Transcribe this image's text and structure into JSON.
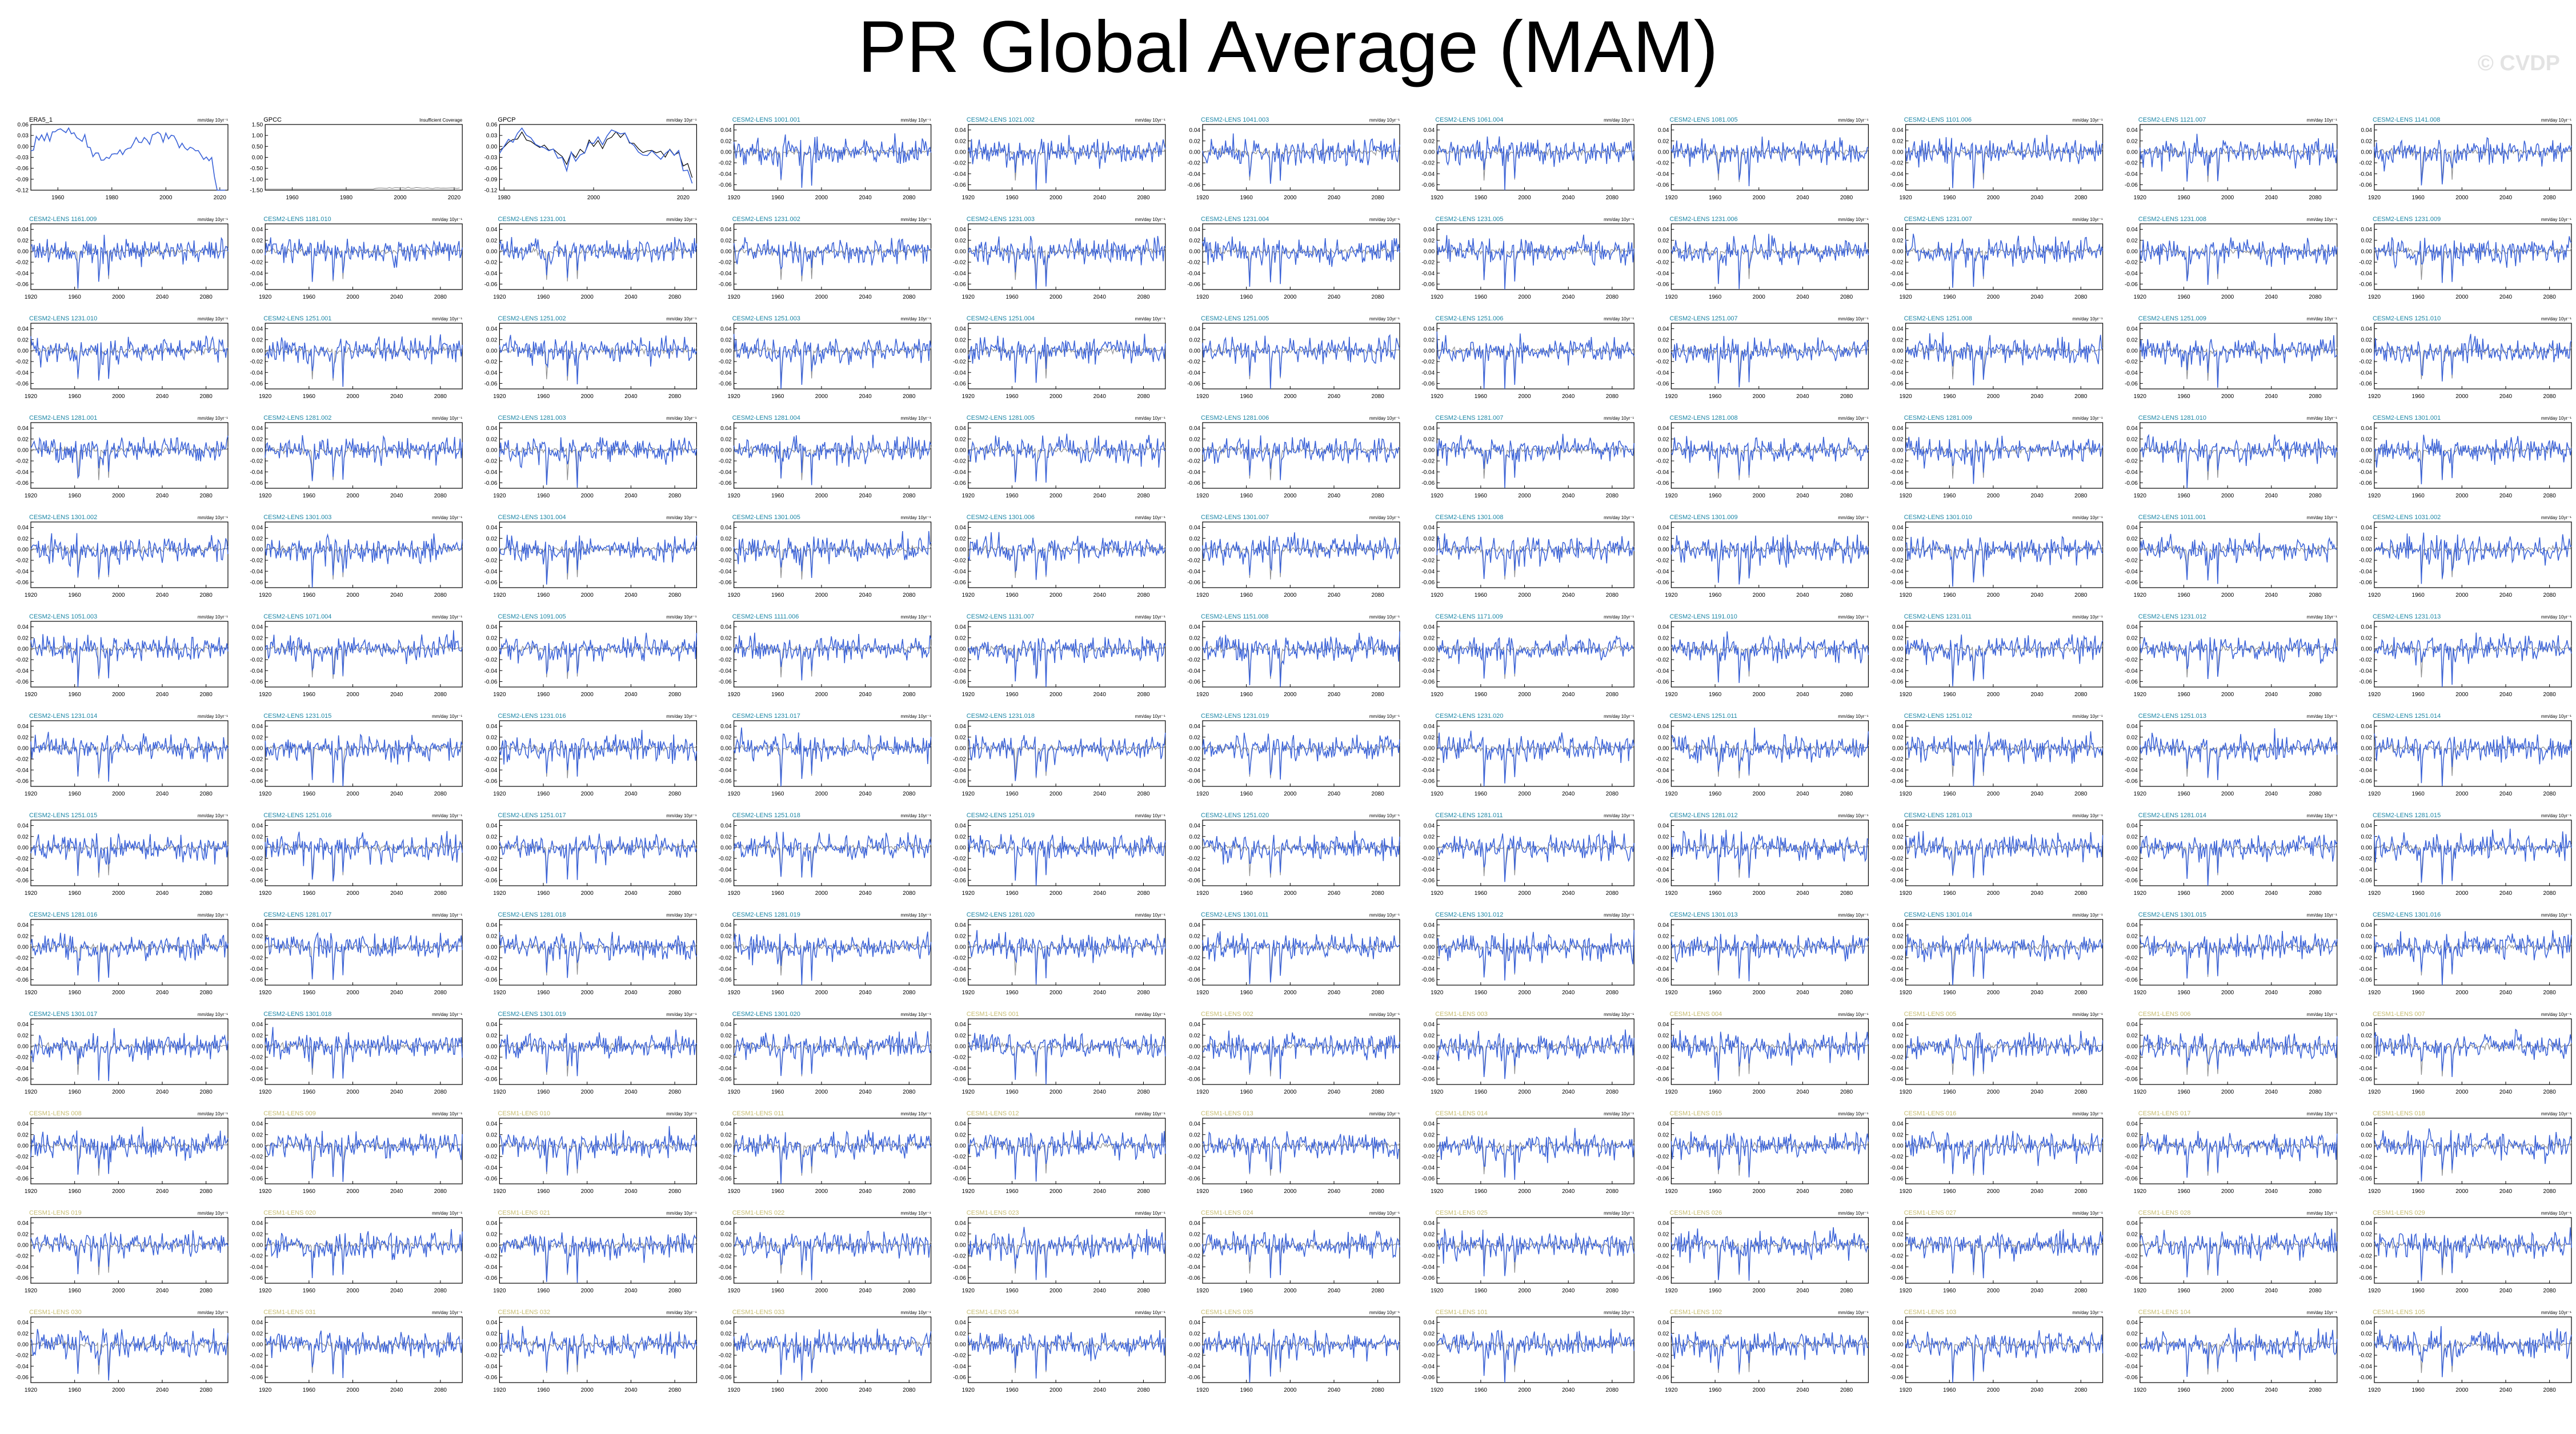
{
  "title": "PR Global Average (MAM)",
  "watermark": "© CVDP",
  "colors": {
    "observed": "#000000",
    "model_line": "#3a62d8",
    "ensemble_mean": "#8f8f8f",
    "label_cesm2": "#1b86a6",
    "label_cesm1": "#c7bd72",
    "axis": "#000000"
  },
  "chart_data": {
    "type": "line",
    "layout": "small-multiples 11 columns x 13 rows",
    "units_label": "mm/day 10^-2",
    "observations": [
      {
        "name": "ERA5_1",
        "units": "mm/day 10yr⁻¹",
        "x_ticks": [
          1960,
          1980,
          2000,
          2020
        ],
        "y_ticks": [
          0.06,
          0.03,
          0.0,
          -0.03,
          -0.06,
          -0.09,
          -0.12
        ],
        "ylim": [
          -0.12,
          0.06
        ]
      },
      {
        "name": "GPCC",
        "note": "Insufficient Coverage",
        "x_ticks": [
          1960,
          1980,
          2000,
          2020
        ],
        "y_ticks": [
          1.5,
          1.0,
          0.5,
          0.0,
          -0.5,
          -1.0,
          -1.5
        ],
        "ylim": [
          -1.5,
          1.5
        ]
      },
      {
        "name": "GPCP",
        "units": "mm/day 10yr⁻¹",
        "x_ticks": [
          1980,
          2000,
          2020
        ],
        "y_ticks": [
          0.06,
          0.03,
          0.0,
          -0.03,
          -0.06,
          -0.09,
          -0.12
        ],
        "ylim": [
          -0.12,
          0.06
        ]
      }
    ],
    "model_x_ticks": [
      1920,
      1960,
      2000,
      2040,
      2080
    ],
    "model_y_ticks": [
      0.04,
      0.02,
      0.0,
      -0.02,
      -0.04,
      -0.06
    ],
    "model_ylim": [
      -0.07,
      0.05
    ],
    "model_xlim": [
      1920,
      2100
    ],
    "model_units": "mm/day 10yr⁻¹",
    "model_panels": [
      "CESM2-LENS 1001.001",
      "CESM2-LENS 1021.002",
      "CESM2-LENS 1041.003",
      "CESM2-LENS 1061.004",
      "CESM2-LENS 1081.005",
      "CESM2-LENS 1101.006",
      "CESM2-LENS 1121.007",
      "CESM2-LENS 1141.008",
      "CESM2-LENS 1161.009",
      "CESM2-LENS 1181.010",
      "CESM2-LENS 1231.001",
      "CESM2-LENS 1231.002",
      "CESM2-LENS 1231.003",
      "CESM2-LENS 1231.004",
      "CESM2-LENS 1231.005",
      "CESM2-LENS 1231.006",
      "CESM2-LENS 1231.007",
      "CESM2-LENS 1231.008",
      "CESM2-LENS 1231.009",
      "CESM2-LENS 1231.010",
      "CESM2-LENS 1251.001",
      "CESM2-LENS 1251.002",
      "CESM2-LENS 1251.003",
      "CESM2-LENS 1251.004",
      "CESM2-LENS 1251.005",
      "CESM2-LENS 1251.006",
      "CESM2-LENS 1251.007",
      "CESM2-LENS 1251.008",
      "CESM2-LENS 1251.009",
      "CESM2-LENS 1251.010",
      "CESM2-LENS 1281.001",
      "CESM2-LENS 1281.002",
      "CESM2-LENS 1281.003",
      "CESM2-LENS 1281.004",
      "CESM2-LENS 1281.005",
      "CESM2-LENS 1281.006",
      "CESM2-LENS 1281.007",
      "CESM2-LENS 1281.008",
      "CESM2-LENS 1281.009",
      "CESM2-LENS 1281.010",
      "CESM2-LENS 1301.001",
      "CESM2-LENS 1301.002",
      "CESM2-LENS 1301.003",
      "CESM2-LENS 1301.004",
      "CESM2-LENS 1301.005",
      "CESM2-LENS 1301.006",
      "CESM2-LENS 1301.007",
      "CESM2-LENS 1301.008",
      "CESM2-LENS 1301.009",
      "CESM2-LENS 1301.010",
      "CESM2-LENS 1011.001",
      "CESM2-LENS 1031.002",
      "CESM2-LENS 1051.003",
      "CESM2-LENS 1071.004",
      "CESM2-LENS 1091.005",
      "CESM2-LENS 1111.006",
      "CESM2-LENS 1131.007",
      "CESM2-LENS 1151.008",
      "CESM2-LENS 1171.009",
      "CESM2-LENS 1191.010",
      "CESM2-LENS 1231.011",
      "CESM2-LENS 1231.012",
      "CESM2-LENS 1231.013",
      "CESM2-LENS 1231.014",
      "CESM2-LENS 1231.015",
      "CESM2-LENS 1231.016",
      "CESM2-LENS 1231.017",
      "CESM2-LENS 1231.018",
      "CESM2-LENS 1231.019",
      "CESM2-LENS 1231.020",
      "CESM2-LENS 1251.011",
      "CESM2-LENS 1251.012",
      "CESM2-LENS 1251.013",
      "CESM2-LENS 1251.014",
      "CESM2-LENS 1251.015",
      "CESM2-LENS 1251.016",
      "CESM2-LENS 1251.017",
      "CESM2-LENS 1251.018",
      "CESM2-LENS 1251.019",
      "CESM2-LENS 1251.020",
      "CESM2-LENS 1281.011",
      "CESM2-LENS 1281.012",
      "CESM2-LENS 1281.013",
      "CESM2-LENS 1281.014",
      "CESM2-LENS 1281.015",
      "CESM2-LENS 1281.016",
      "CESM2-LENS 1281.017",
      "CESM2-LENS 1281.018",
      "CESM2-LENS 1281.019",
      "CESM2-LENS 1281.020",
      "CESM2-LENS 1301.011",
      "CESM2-LENS 1301.012",
      "CESM2-LENS 1301.013",
      "CESM2-LENS 1301.014",
      "CESM2-LENS 1301.015",
      "CESM2-LENS 1301.016",
      "CESM2-LENS 1301.017",
      "CESM2-LENS 1301.018",
      "CESM2-LENS 1301.019",
      "CESM2-LENS 1301.020",
      "CESM1-LENS 001",
      "CESM1-LENS 002",
      "CESM1-LENS 003",
      "CESM1-LENS 004",
      "CESM1-LENS 005",
      "CESM1-LENS 006",
      "CESM1-LENS 007",
      "CESM1-LENS 008",
      "CESM1-LENS 009",
      "CESM1-LENS 010",
      "CESM1-LENS 011",
      "CESM1-LENS 012",
      "CESM1-LENS 013",
      "CESM1-LENS 014",
      "CESM1-LENS 015",
      "CESM1-LENS 016",
      "CESM1-LENS 017",
      "CESM1-LENS 018",
      "CESM1-LENS 019",
      "CESM1-LENS 020",
      "CESM1-LENS 021",
      "CESM1-LENS 022",
      "CESM1-LENS 023",
      "CESM1-LENS 024",
      "CESM1-LENS 025",
      "CESM1-LENS 026",
      "CESM1-LENS 027",
      "CESM1-LENS 028",
      "CESM1-LENS 029",
      "CESM1-LENS 030",
      "CESM1-LENS 031",
      "CESM1-LENS 032",
      "CESM1-LENS 033",
      "CESM1-LENS 034",
      "CESM1-LENS 035",
      "CESM1-LENS 101",
      "CESM1-LENS 102",
      "CESM1-LENS 103",
      "CESM1-LENS 104",
      "CESM1-LENS 105"
    ]
  }
}
